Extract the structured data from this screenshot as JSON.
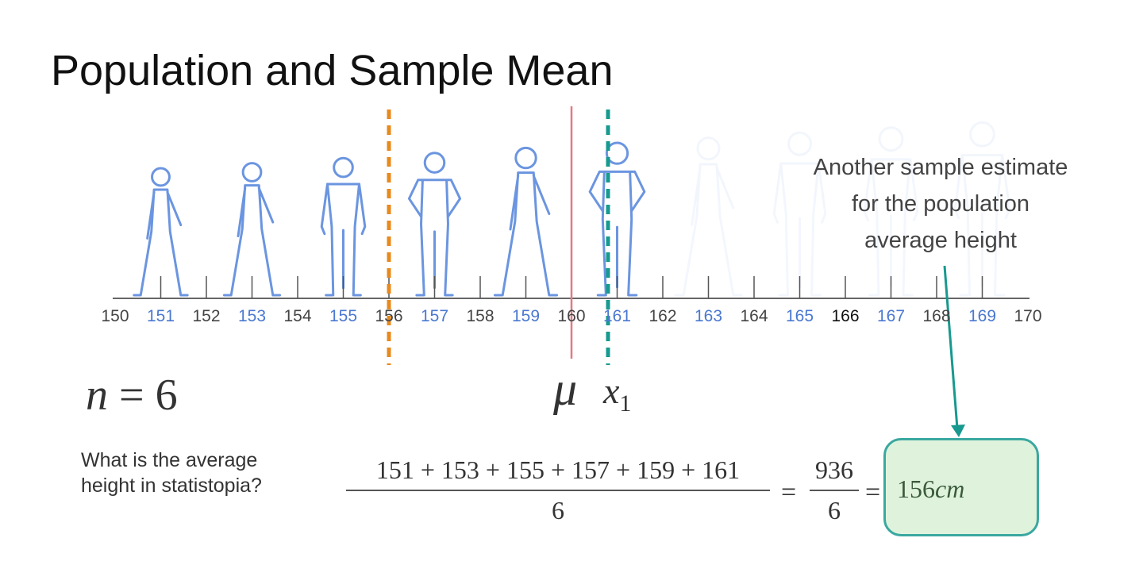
{
  "slide": {
    "title": "Population and Sample Mean",
    "annotation": [
      "Another sample estimate",
      "for the population",
      "average height"
    ],
    "n_label": {
      "var": "n",
      "eq": "=",
      "value": "6"
    },
    "mu_label": "μ",
    "xbar_label": {
      "var": "x",
      "bar": "¯",
      "sub": "1"
    },
    "question": [
      "What is the average",
      "height in statistopia?"
    ],
    "formula": {
      "numerator": "151 + 153 + 155 + 157 + 159 + 161",
      "denominator": "6",
      "eq1": "=",
      "sum": "936",
      "sum_denominator": "6",
      "eq2": "=",
      "result_value": "156",
      "result_unit": "cm"
    }
  },
  "axis": {
    "min": 150,
    "max": 170,
    "ticks": [
      {
        "label": "150",
        "color": "#444444"
      },
      {
        "label": "151",
        "color": "#4a78d0"
      },
      {
        "label": "152",
        "color": "#444444"
      },
      {
        "label": "153",
        "color": "#4a78d0"
      },
      {
        "label": "154",
        "color": "#444444"
      },
      {
        "label": "155",
        "color": "#4a78d0"
      },
      {
        "label": "156",
        "color": "#444444"
      },
      {
        "label": "157",
        "color": "#4a78d0"
      },
      {
        "label": "158",
        "color": "#444444"
      },
      {
        "label": "159",
        "color": "#4a78d0"
      },
      {
        "label": "160",
        "color": "#444444"
      },
      {
        "label": "161",
        "color": "#4a78d0"
      },
      {
        "label": "162",
        "color": "#444444"
      },
      {
        "label": "163",
        "color": "#4a78d0"
      },
      {
        "label": "164",
        "color": "#444444"
      },
      {
        "label": "165",
        "color": "#4a78d0"
      },
      {
        "label": "166",
        "color": "#111111"
      },
      {
        "label": "167",
        "color": "#4a78d0"
      },
      {
        "label": "168",
        "color": "#444444"
      },
      {
        "label": "169",
        "color": "#4a78d0"
      },
      {
        "label": "170",
        "color": "#444444"
      }
    ]
  },
  "people": [
    {
      "height": 151,
      "pose": "walking-woman",
      "faded": false
    },
    {
      "height": 153,
      "pose": "walking-man",
      "faded": false
    },
    {
      "height": 155,
      "pose": "standing-man",
      "faded": false
    },
    {
      "height": 157,
      "pose": "hands-on-hips-woman",
      "faded": false
    },
    {
      "height": 159,
      "pose": "walking-man",
      "faded": false
    },
    {
      "height": 161,
      "pose": "hands-on-hips-woman",
      "faded": false
    },
    {
      "height": 163,
      "pose": "walking-woman",
      "faded": true
    },
    {
      "height": 165,
      "pose": "standing-man",
      "faded": true
    },
    {
      "height": 167,
      "pose": "standing-man",
      "faded": true
    },
    {
      "height": 169,
      "pose": "standing-man",
      "faded": true
    }
  ],
  "markers": [
    {
      "name": "previous-sample-mean",
      "value": 156,
      "style": "dashed",
      "color": "#e8891c"
    },
    {
      "name": "population-mean",
      "value": 160,
      "style": "solid",
      "color": "#e07a85"
    },
    {
      "name": "sample-mean-1",
      "value": 160.8,
      "style": "dashed",
      "color": "#17998f"
    }
  ],
  "colors": {
    "person": "#6b95e0",
    "arrow": "#17998f",
    "result_fill": "#dff3dc",
    "result_border": "#3aa8a0"
  }
}
